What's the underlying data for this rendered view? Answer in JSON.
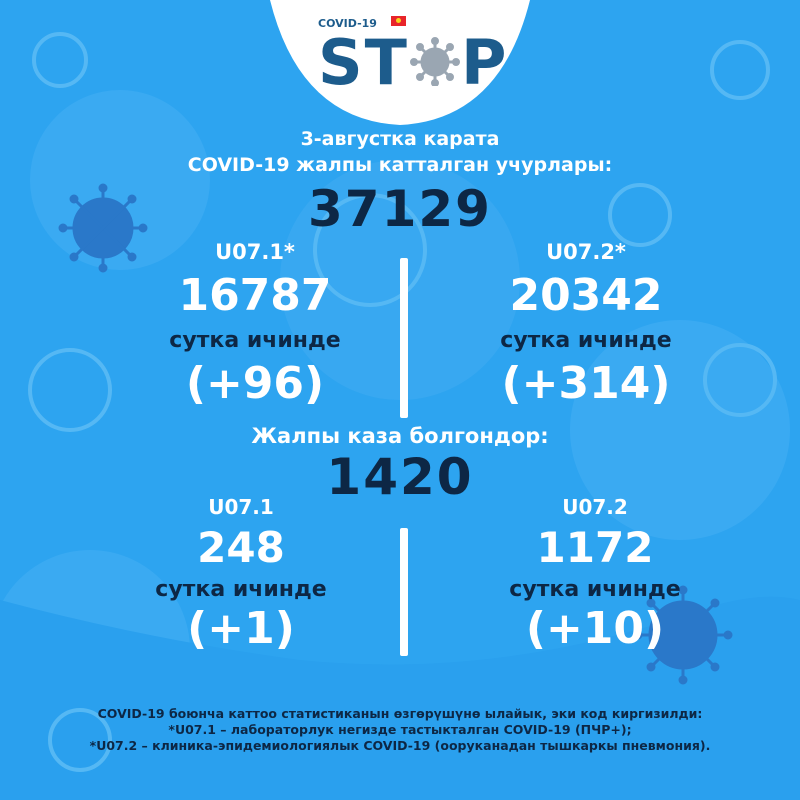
{
  "logo": {
    "small_text": "COVID-19",
    "letters_left": "ST",
    "letters_right": "P",
    "virus_icon": "virus-icon",
    "flag_icon": "kyrgyz-flag-icon"
  },
  "header": {
    "date_line": "3-августка карата",
    "subtitle": "COVID-19 жалпы катталган учурлары:"
  },
  "total_cases": "37129",
  "cases": {
    "left": {
      "code": "U07.1*",
      "value": "16787",
      "daily_label": "сутка ичинде",
      "daily": "(+96)"
    },
    "right": {
      "code": "U07.2*",
      "value": "20342",
      "daily_label": "сутка ичинде",
      "daily": "(+314)"
    }
  },
  "deaths_header": "Жалпы каза болгондор:",
  "total_deaths": "1420",
  "deaths": {
    "left": {
      "code": "U07.1",
      "value": "248",
      "daily_label": "сутка ичинде",
      "daily": "(+1)"
    },
    "right": {
      "code": "U07.2",
      "value": "1172",
      "daily_label": "сутка ичинде",
      "daily": "(+10)"
    }
  },
  "footnotes": [
    "COVID-19 боюнча каттоо статистиканын өзгөрүшүнө ылайык, эки код киргизилди:",
    "*U07.1 – лабораторлук негизде тастыкталган COVID-19 (ПЧР+);",
    "*U07.2 – клиника-эпидемиологиялык COVID-19 (ооруканадан тышкаркы пневмония)."
  ],
  "colors": {
    "background": "#2da4f0",
    "text_white": "#ffffff",
    "text_navy": "#0d2745",
    "logo_blue": "#1d5c8c"
  }
}
